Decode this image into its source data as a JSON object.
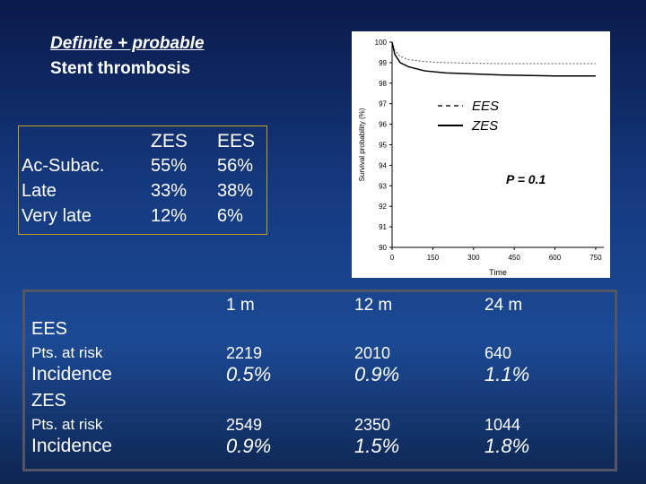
{
  "title": {
    "line1": "Definite + probable",
    "line2": "Stent thrombosis"
  },
  "summary_table": {
    "headers": [
      "ZES",
      "EES"
    ],
    "rows": [
      {
        "label": "Ac-Subac.",
        "cells": [
          "55%",
          "56%"
        ]
      },
      {
        "label": "Late",
        "cells": [
          "33%",
          "38%"
        ]
      },
      {
        "label": "Very late",
        "cells": [
          "12%",
          "6%"
        ]
      }
    ]
  },
  "chart_data": {
    "type": "line",
    "xlabel": "Time",
    "ylabel": "Survival probability (%)",
    "annotation": "P = 0.1",
    "x": [
      0,
      10,
      30,
      60,
      120,
      200,
      300,
      400,
      600,
      750
    ],
    "series": [
      {
        "name": "EES",
        "color": "#555555",
        "linestyle": "dashed",
        "values": [
          100,
          99.6,
          99.3,
          99.15,
          99.05,
          99.0,
          98.97,
          98.95,
          98.95,
          98.95
        ]
      },
      {
        "name": "ZES",
        "color": "#000000",
        "linestyle": "solid",
        "values": [
          100,
          99.4,
          99.0,
          98.8,
          98.6,
          98.5,
          98.45,
          98.4,
          98.35,
          98.35
        ]
      }
    ],
    "xlim": [
      0,
      780
    ],
    "xticks": [
      0,
      150,
      300,
      450,
      600,
      750
    ],
    "ylim": [
      90,
      100
    ],
    "yticks": [
      90,
      91,
      92,
      93,
      94,
      95,
      96,
      97,
      98,
      99,
      100
    ]
  },
  "risk_table": {
    "columns": [
      "1 m",
      "12 m",
      "24 m"
    ],
    "groups": [
      {
        "name": "EES",
        "rows": [
          {
            "label": "Pts. at risk",
            "cells": [
              "2219",
              "2010",
              "640"
            ]
          },
          {
            "label": "Incidence",
            "cells": [
              "0.5%",
              "0.9%",
              "1.1%"
            ]
          }
        ]
      },
      {
        "name": "ZES",
        "rows": [
          {
            "label": "Pts. at risk",
            "cells": [
              "2549",
              "2350",
              "1044"
            ]
          },
          {
            "label": "Incidence",
            "cells": [
              "0.9%",
              "1.5%",
              "1.8%"
            ]
          }
        ]
      }
    ]
  }
}
